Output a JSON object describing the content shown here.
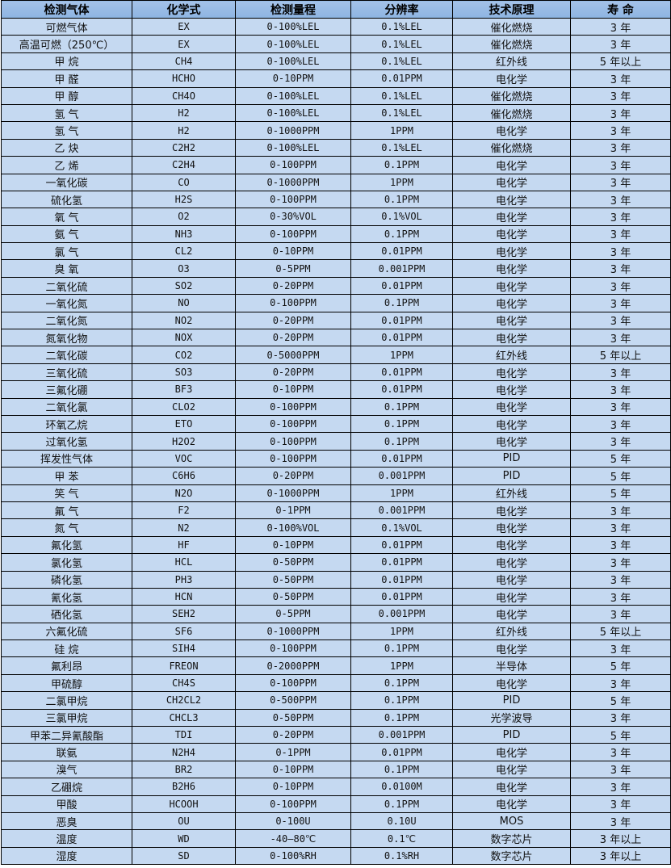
{
  "headers": [
    "检测气体",
    "化学式",
    "检测量程",
    "分辨率",
    "技术原理",
    "寿 命"
  ],
  "rows": [
    [
      "可燃气体",
      "EX",
      "0-100%LEL",
      "0.1%LEL",
      "催化燃烧",
      "3 年"
    ],
    [
      "高温可燃（250℃）",
      "EX",
      "0-100%LEL",
      "0.1%LEL",
      "催化燃烧",
      "3 年"
    ],
    [
      "甲 烷",
      "CH4",
      "0-100%LEL",
      "0.1%LEL",
      "红外线",
      "5 年以上"
    ],
    [
      "甲 醛",
      "HCHO",
      "0-10PPM",
      "0.01PPM",
      "电化学",
      "3 年"
    ],
    [
      "甲 醇",
      "CH4O",
      "0-100%LEL",
      "0.1%LEL",
      "催化燃烧",
      "3 年"
    ],
    [
      "氢 气",
      "H2",
      "0-100%LEL",
      "0.1%LEL",
      "催化燃烧",
      "3 年"
    ],
    [
      "氢 气",
      "H2",
      "0-1000PPM",
      "1PPM",
      "电化学",
      "3 年"
    ],
    [
      "乙 炔",
      "C2H2",
      "0-100%LEL",
      "0.1%LEL",
      "催化燃烧",
      "3 年"
    ],
    [
      "乙 烯",
      "C2H4",
      "0-100PPM",
      "0.1PPM",
      "电化学",
      "3 年"
    ],
    [
      "一氧化碳",
      "CO",
      "0-1000PPM",
      "1PPM",
      "电化学",
      "3 年"
    ],
    [
      "硫化氢",
      "H2S",
      "0-100PPM",
      "0.1PPM",
      "电化学",
      "3 年"
    ],
    [
      "氧 气",
      "O2",
      "0-30%VOL",
      "0.1%VOL",
      "电化学",
      "3 年"
    ],
    [
      "氨 气",
      "NH3",
      "0-100PPM",
      "0.1PPM",
      "电化学",
      "3 年"
    ],
    [
      "氯 气",
      "CL2",
      "0-10PPM",
      "0.01PPM",
      "电化学",
      "3 年"
    ],
    [
      "臭 氧",
      "O3",
      "0-5PPM",
      "0.001PPM",
      "电化学",
      "3 年"
    ],
    [
      "二氧化硫",
      "SO2",
      "0-20PPM",
      "0.01PPM",
      "电化学",
      "3 年"
    ],
    [
      "一氧化氮",
      "NO",
      "0-100PPM",
      "0.1PPM",
      "电化学",
      "3 年"
    ],
    [
      "二氧化氮",
      "NO2",
      "0-20PPM",
      "0.01PPM",
      "电化学",
      "3 年"
    ],
    [
      "氮氧化物",
      "NOX",
      "0-20PPM",
      "0.01PPM",
      "电化学",
      "3 年"
    ],
    [
      "二氧化碳",
      "CO2",
      "0-5000PPM",
      "1PPM",
      "红外线",
      "5 年以上"
    ],
    [
      "三氧化硫",
      "SO3",
      "0-20PPM",
      "0.01PPM",
      "电化学",
      "3 年"
    ],
    [
      "三氟化硼",
      "BF3",
      "0-10PPM",
      "0.01PPM",
      "电化学",
      "3 年"
    ],
    [
      "二氧化氯",
      "CLO2",
      "0-100PPM",
      "0.1PPM",
      "电化学",
      "3 年"
    ],
    [
      "环氧乙烷",
      "ETO",
      "0-100PPM",
      "0.1PPM",
      "电化学",
      "3 年"
    ],
    [
      "过氧化氢",
      "H2O2",
      "0-100PPM",
      "0.1PPM",
      "电化学",
      "3 年"
    ],
    [
      "挥发性气体",
      "VOC",
      "0-100PPM",
      "0.01PPM",
      "PID",
      "5 年"
    ],
    [
      "甲 苯",
      "C6H6",
      "0-20PPM",
      "0.001PPM",
      "PID",
      "5 年"
    ],
    [
      "笑 气",
      "N2O",
      "0-1000PPM",
      "1PPM",
      "红外线",
      "5 年"
    ],
    [
      "氟 气",
      "F2",
      "0-1PPM",
      "0.001PPM",
      "电化学",
      "3 年"
    ],
    [
      "氮 气",
      "N2",
      "0-100%VOL",
      "0.1%VOL",
      "电化学",
      "3 年"
    ],
    [
      "氟化氢",
      "HF",
      "0-10PPM",
      "0.01PPM",
      "电化学",
      "3 年"
    ],
    [
      "氯化氢",
      "HCL",
      "0-50PPM",
      "0.01PPM",
      "电化学",
      "3 年"
    ],
    [
      "磷化氢",
      "PH3",
      "0-50PPM",
      "0.01PPM",
      "电化学",
      "3 年"
    ],
    [
      "氰化氢",
      "HCN",
      "0-50PPM",
      "0.01PPM",
      "电化学",
      "3 年"
    ],
    [
      "硒化氢",
      "SEH2",
      "0-5PPM",
      "0.001PPM",
      "电化学",
      "3 年"
    ],
    [
      "六氟化硫",
      "SF6",
      "0-1000PPM",
      "1PPM",
      "红外线",
      "5 年以上"
    ],
    [
      "硅 烷",
      "SIH4",
      "0-100PPM",
      "0.1PPM",
      "电化学",
      "3 年"
    ],
    [
      "氟利昂",
      "FREON",
      "0-2000PPM",
      "1PPM",
      "半导体",
      "5 年"
    ],
    [
      "甲硫醇",
      "CH4S",
      "0-100PPM",
      "0.1PPM",
      "电化学",
      "3 年"
    ],
    [
      "二氯甲烷",
      "CH2CL2",
      "0-500PPM",
      "0.1PPM",
      "PID",
      "5 年"
    ],
    [
      "三氯甲烷",
      "CHCL3",
      "0-50PPM",
      "0.1PPM",
      "光学波导",
      "3 年"
    ],
    [
      "甲苯二异氰酸酯",
      "TDI",
      "0-20PPM",
      "0.001PPM",
      "PID",
      "5 年"
    ],
    [
      "联氨",
      "N2H4",
      "0-1PPM",
      "0.01PPM",
      "电化学",
      "3 年"
    ],
    [
      "溴气",
      "BR2",
      "0-10PPM",
      "0.1PPM",
      "电化学",
      "3 年"
    ],
    [
      "乙硼烷",
      "B2H6",
      "0-10PPM",
      "0.0100M",
      "电化学",
      "3 年"
    ],
    [
      "甲酸",
      "HCOOH",
      "0-100PPM",
      "0.1PPM",
      "电化学",
      "3 年"
    ],
    [
      "恶臭",
      "OU",
      "0-100U",
      "0.10U",
      "MOS",
      "3 年"
    ],
    [
      "温度",
      "WD",
      "-40—80℃",
      "0.1℃",
      "数字芯片",
      "3 年以上"
    ],
    [
      "湿度",
      "SD",
      "0-100%RH",
      "0.1%RH",
      "数字芯片",
      "3 年以上"
    ]
  ],
  "colors": {
    "header_bg": "#8db4e2",
    "row_bg": "#c5d9f1",
    "border": "#000000"
  }
}
